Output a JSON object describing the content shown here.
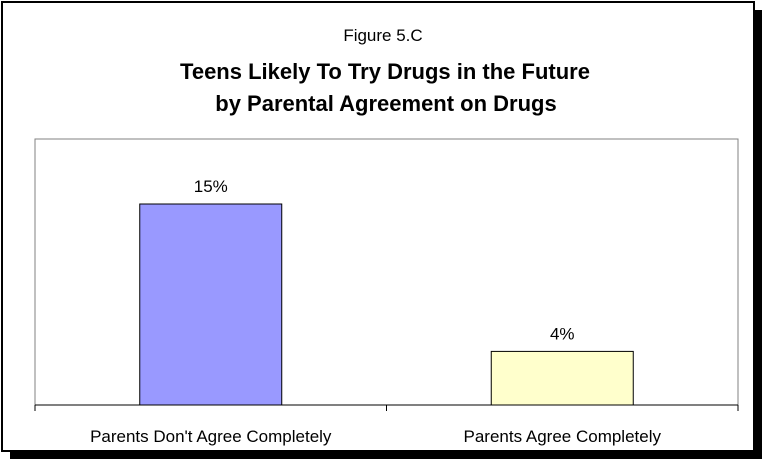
{
  "chart_data": {
    "type": "bar",
    "figure_label": "Figure 5.C",
    "title": "Teens Likely To Try Drugs in the Future",
    "subtitle": "by Parental Agreement on Drugs",
    "categories": [
      "Parents Don't Agree Completely",
      "Parents Agree Completely"
    ],
    "values": [
      15,
      4
    ],
    "data_labels": [
      "15%",
      "4%"
    ],
    "bar_colors": [
      "#9999ff",
      "#ffffcc"
    ],
    "ylim": [
      0,
      20
    ],
    "grid": false,
    "legend": "none"
  }
}
